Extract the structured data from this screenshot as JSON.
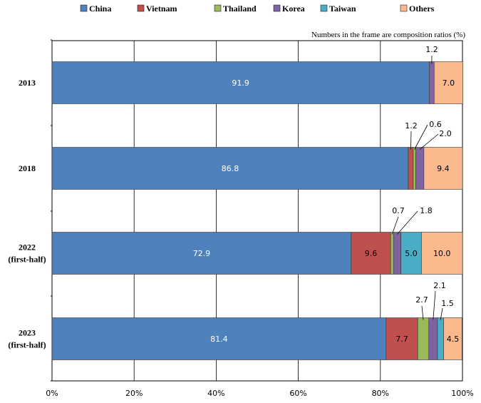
{
  "chart_data": {
    "type": "bar",
    "stacked": true,
    "orientation": "horizontal",
    "note": "Numbers in the frame are composition ratios (%)",
    "categories": [
      "2013",
      "2018",
      "2022\n(first-half)",
      "2023\n(first-half)"
    ],
    "series": [
      {
        "name": "China",
        "color": "#4f81bd",
        "values": [
          91.9,
          86.8,
          72.9,
          81.4
        ]
      },
      {
        "name": "Vietnam",
        "color": "#c0504d",
        "values": [
          0,
          1.2,
          9.6,
          7.7
        ]
      },
      {
        "name": "Thailand",
        "color": "#9bbb59",
        "values": [
          0,
          0.6,
          0.7,
          2.7
        ]
      },
      {
        "name": "Korea",
        "color": "#8064a2",
        "values": [
          1.2,
          2.0,
          1.8,
          2.1
        ]
      },
      {
        "name": "Taiwan",
        "color": "#4bacc6",
        "values": [
          0,
          0,
          5.0,
          1.5
        ]
      },
      {
        "name": "Others",
        "color": "#f9b98d",
        "values": [
          7.0,
          9.4,
          10.0,
          4.5
        ]
      }
    ],
    "data_labels": [
      [
        "91.9",
        null,
        null,
        "1.2",
        null,
        "7.0"
      ],
      [
        "86.8",
        "1.2",
        "0.6",
        "2.0",
        null,
        "9.4"
      ],
      [
        "72.9",
        "9.6",
        "0.7",
        "1.8",
        "5.0",
        "10.0"
      ],
      [
        "81.4",
        "7.7",
        "2.7",
        "2.1",
        "1.5",
        "4.5"
      ]
    ],
    "xlim": [
      0,
      100
    ],
    "xticks": [
      "0%",
      "20%",
      "40%",
      "60%",
      "80%",
      "100%"
    ],
    "grid": true,
    "legend_position": "top"
  }
}
